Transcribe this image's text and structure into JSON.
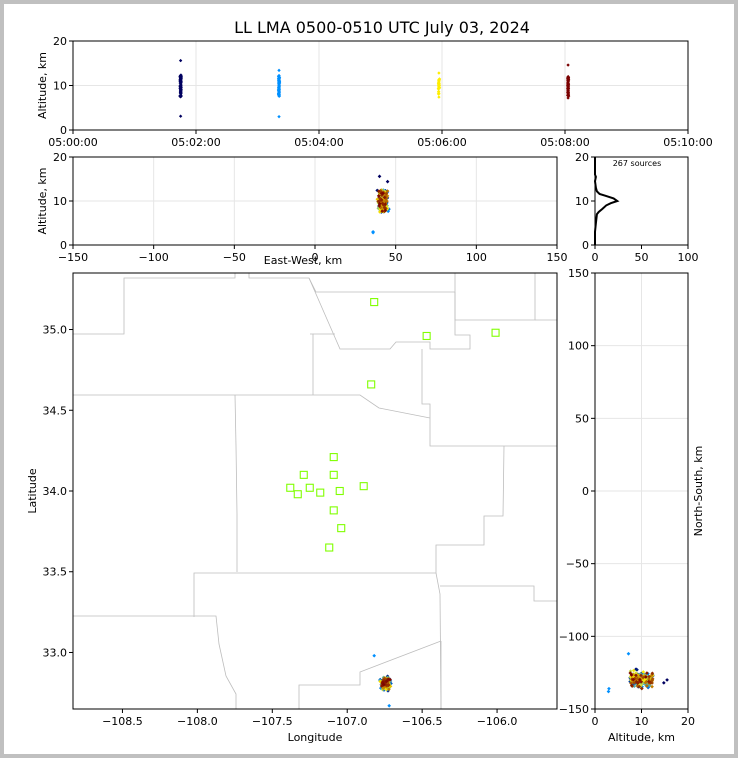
{
  "title": "LL LMA 0500-0510 UTC July 03, 2024",
  "colors": {
    "station": "#80ff00",
    "time_ramp": [
      "#000060",
      "#0090ff",
      "#ffee00",
      "#7a0000"
    ]
  },
  "chart_data": [
    {
      "id": "time-altitude",
      "type": "scatter",
      "ylabel": "Altitude, km",
      "xlabel": "",
      "ylim": [
        0,
        20
      ],
      "yticks": [
        "0",
        "10",
        "20"
      ],
      "xticks": [
        "05:00:00",
        "05:02:00",
        "05:04:00",
        "05:06:00",
        "05:08:00",
        "05:10:00"
      ],
      "xlim_minutes": [
        0,
        10
      ],
      "grid": true,
      "groups": [
        {
          "t_minutes": 1.75,
          "color": "#000060",
          "alt_min": 3.1,
          "alt_max": 15.6,
          "alt_core": [
            7.5,
            12.4
          ],
          "count": 95
        },
        {
          "t_minutes": 3.35,
          "color": "#0090ff",
          "alt_min": 3.0,
          "alt_max": 13.4,
          "alt_core": [
            7.5,
            12.3
          ],
          "count": 70
        },
        {
          "t_minutes": 5.95,
          "color": "#ffee00",
          "alt_min": 7.4,
          "alt_max": 12.8,
          "alt_core": [
            8.0,
            11.6
          ],
          "count": 32
        },
        {
          "t_minutes": 8.05,
          "color": "#7a0000",
          "alt_min": 7.2,
          "alt_max": 14.6,
          "alt_core": [
            7.6,
            12.0
          ],
          "count": 70
        }
      ]
    },
    {
      "id": "ew-altitude",
      "type": "scatter",
      "xlabel": "East-West, km",
      "ylabel": "Altitude, km",
      "xlim": [
        -150,
        150
      ],
      "ylim": [
        0,
        20
      ],
      "xticks": [
        "−150",
        "−100",
        "−50",
        "0",
        "50",
        "100",
        "150"
      ],
      "yticks": [
        "0",
        "10",
        "20"
      ],
      "grid": true,
      "cluster": {
        "x_center": 42,
        "x_spread": 5,
        "alt_core": [
          7.5,
          12.5
        ],
        "outliers": [
          [
            36,
            3.0
          ],
          [
            36,
            2.8
          ],
          [
            40,
            15.6
          ],
          [
            45,
            14.4
          ]
        ]
      }
    },
    {
      "id": "altitude-histogram",
      "type": "line",
      "annotation": "267 sources",
      "xlim": [
        0,
        100
      ],
      "ylim": [
        0,
        20
      ],
      "xticks": [
        "0",
        "50",
        "100"
      ],
      "yticks": [
        "0",
        "10",
        "20"
      ],
      "points": [
        [
          0,
          0
        ],
        [
          0,
          3
        ],
        [
          1,
          5
        ],
        [
          2,
          7
        ],
        [
          4,
          7.5
        ],
        [
          8,
          8.2
        ],
        [
          12,
          9.0
        ],
        [
          17,
          9.5
        ],
        [
          24,
          10.0
        ],
        [
          20,
          10.6
        ],
        [
          11,
          11.2
        ],
        [
          5,
          11.6
        ],
        [
          2,
          12.2
        ],
        [
          1,
          13
        ],
        [
          0,
          14.5
        ],
        [
          1,
          15.5
        ],
        [
          0,
          16
        ],
        [
          0,
          20
        ]
      ]
    },
    {
      "id": "plan-view",
      "type": "scatter",
      "xlabel": "Longitude",
      "ylabel": "Latitude",
      "xlim": [
        -108.83,
        -105.6
      ],
      "ylim": [
        32.65,
        35.35
      ],
      "xticks": [
        "−108.5",
        "−108.0",
        "−107.5",
        "−107.0",
        "−106.5",
        "−106.0"
      ],
      "yticks": [
        "33.0",
        "33.5",
        "34.0",
        "34.5",
        "35.0"
      ],
      "stations": [
        [
          -106.82,
          35.17
        ],
        [
          -106.47,
          34.96
        ],
        [
          -106.01,
          34.98
        ],
        [
          -106.84,
          34.66
        ],
        [
          -107.09,
          34.21
        ],
        [
          -107.29,
          34.1
        ],
        [
          -107.09,
          34.1
        ],
        [
          -107.38,
          34.02
        ],
        [
          -107.25,
          34.02
        ],
        [
          -107.33,
          33.98
        ],
        [
          -107.18,
          33.99
        ],
        [
          -107.05,
          34.0
        ],
        [
          -106.89,
          34.03
        ],
        [
          -107.09,
          33.88
        ],
        [
          -107.04,
          33.77
        ],
        [
          -107.12,
          33.65
        ]
      ],
      "cluster": {
        "lon_center": -106.745,
        "lon_spread": 0.05,
        "lat_center": 32.81,
        "lat_spread": 0.06,
        "outliers": [
          [
            -106.82,
            32.98
          ],
          [
            -106.72,
            32.67
          ]
        ]
      }
    },
    {
      "id": "altitude-northsouth",
      "type": "scatter",
      "xlabel": "Altitude, km",
      "ylabel": "North-South, km",
      "xlim": [
        0,
        20
      ],
      "ylim": [
        -150,
        150
      ],
      "xticks": [
        "0",
        "10",
        "20"
      ],
      "yticks": [
        "−150",
        "−100",
        "−50",
        "0",
        "50",
        "100",
        "150"
      ],
      "grid": true,
      "cluster": {
        "alt_core": [
          7.5,
          12.5
        ],
        "ns_center": -130,
        "ns_spread": 8,
        "outliers": [
          [
            3.0,
            -136
          ],
          [
            2.9,
            -138
          ],
          [
            7.2,
            -112
          ],
          [
            15.5,
            -130
          ],
          [
            14.8,
            -132
          ]
        ]
      }
    }
  ]
}
